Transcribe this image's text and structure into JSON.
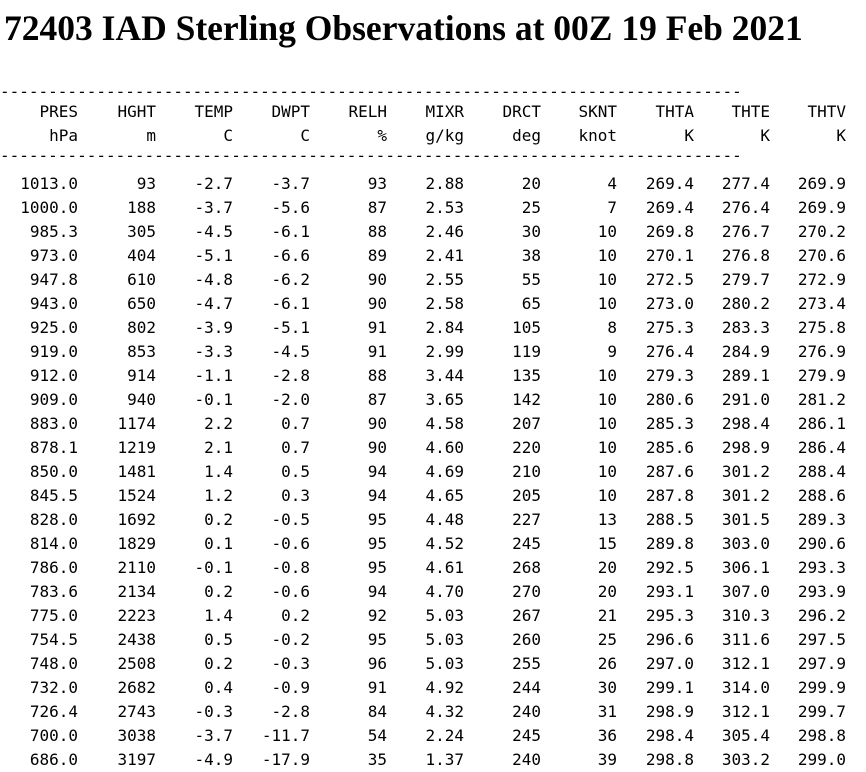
{
  "title": "72403 IAD Sterling Observations at 00Z 19 Feb 2021",
  "rule": "-----------------------------------------------------------------------------",
  "columns": [
    {
      "name": "PRES",
      "unit": "hPa"
    },
    {
      "name": "HGHT",
      "unit": "m"
    },
    {
      "name": "TEMP",
      "unit": "C"
    },
    {
      "name": "DWPT",
      "unit": "C"
    },
    {
      "name": "RELH",
      "unit": "%"
    },
    {
      "name": "MIXR",
      "unit": "g/kg"
    },
    {
      "name": "DRCT",
      "unit": "deg"
    },
    {
      "name": "SKNT",
      "unit": "knot"
    },
    {
      "name": "THTA",
      "unit": "K"
    },
    {
      "name": "THTE",
      "unit": "K"
    },
    {
      "name": "THTV",
      "unit": "K"
    }
  ],
  "rows": [
    [
      "1013.0",
      "93",
      "-2.7",
      "-3.7",
      "93",
      "2.88",
      "20",
      "4",
      "269.4",
      "277.4",
      "269.9"
    ],
    [
      "1000.0",
      "188",
      "-3.7",
      "-5.6",
      "87",
      "2.53",
      "25",
      "7",
      "269.4",
      "276.4",
      "269.9"
    ],
    [
      "985.3",
      "305",
      "-4.5",
      "-6.1",
      "88",
      "2.46",
      "30",
      "10",
      "269.8",
      "276.7",
      "270.2"
    ],
    [
      "973.0",
      "404",
      "-5.1",
      "-6.6",
      "89",
      "2.41",
      "38",
      "10",
      "270.1",
      "276.8",
      "270.6"
    ],
    [
      "947.8",
      "610",
      "-4.8",
      "-6.2",
      "90",
      "2.55",
      "55",
      "10",
      "272.5",
      "279.7",
      "272.9"
    ],
    [
      "943.0",
      "650",
      "-4.7",
      "-6.1",
      "90",
      "2.58",
      "65",
      "10",
      "273.0",
      "280.2",
      "273.4"
    ],
    [
      "925.0",
      "802",
      "-3.9",
      "-5.1",
      "91",
      "2.84",
      "105",
      "8",
      "275.3",
      "283.3",
      "275.8"
    ],
    [
      "919.0",
      "853",
      "-3.3",
      "-4.5",
      "91",
      "2.99",
      "119",
      "9",
      "276.4",
      "284.9",
      "276.9"
    ],
    [
      "912.0",
      "914",
      "-1.1",
      "-2.8",
      "88",
      "3.44",
      "135",
      "10",
      "279.3",
      "289.1",
      "279.9"
    ],
    [
      "909.0",
      "940",
      "-0.1",
      "-2.0",
      "87",
      "3.65",
      "142",
      "10",
      "280.6",
      "291.0",
      "281.2"
    ],
    [
      "883.0",
      "1174",
      "2.2",
      "0.7",
      "90",
      "4.58",
      "207",
      "10",
      "285.3",
      "298.4",
      "286.1"
    ],
    [
      "878.1",
      "1219",
      "2.1",
      "0.7",
      "90",
      "4.60",
      "220",
      "10",
      "285.6",
      "298.9",
      "286.4"
    ],
    [
      "850.0",
      "1481",
      "1.4",
      "0.5",
      "94",
      "4.69",
      "210",
      "10",
      "287.6",
      "301.2",
      "288.4"
    ],
    [
      "845.5",
      "1524",
      "1.2",
      "0.3",
      "94",
      "4.65",
      "205",
      "10",
      "287.8",
      "301.2",
      "288.6"
    ],
    [
      "828.0",
      "1692",
      "0.2",
      "-0.5",
      "95",
      "4.48",
      "227",
      "13",
      "288.5",
      "301.5",
      "289.3"
    ],
    [
      "814.0",
      "1829",
      "0.1",
      "-0.6",
      "95",
      "4.52",
      "245",
      "15",
      "289.8",
      "303.0",
      "290.6"
    ],
    [
      "786.0",
      "2110",
      "-0.1",
      "-0.8",
      "95",
      "4.61",
      "268",
      "20",
      "292.5",
      "306.1",
      "293.3"
    ],
    [
      "783.6",
      "2134",
      "0.2",
      "-0.6",
      "94",
      "4.70",
      "270",
      "20",
      "293.1",
      "307.0",
      "293.9"
    ],
    [
      "775.0",
      "2223",
      "1.4",
      "0.2",
      "92",
      "5.03",
      "267",
      "21",
      "295.3",
      "310.3",
      "296.2"
    ],
    [
      "754.5",
      "2438",
      "0.5",
      "-0.2",
      "95",
      "5.03",
      "260",
      "25",
      "296.6",
      "311.6",
      "297.5"
    ],
    [
      "748.0",
      "2508",
      "0.2",
      "-0.3",
      "96",
      "5.03",
      "255",
      "26",
      "297.0",
      "312.1",
      "297.9"
    ],
    [
      "732.0",
      "2682",
      "0.4",
      "-0.9",
      "91",
      "4.92",
      "244",
      "30",
      "299.1",
      "314.0",
      "299.9"
    ],
    [
      "726.4",
      "2743",
      "-0.3",
      "-2.8",
      "84",
      "4.32",
      "240",
      "31",
      "298.9",
      "312.1",
      "299.7"
    ],
    [
      "700.0",
      "3038",
      "-3.7",
      "-11.7",
      "54",
      "2.24",
      "245",
      "36",
      "298.4",
      "305.4",
      "298.8"
    ],
    [
      "686.0",
      "3197",
      "-4.9",
      "-17.9",
      "35",
      "1.37",
      "240",
      "39",
      "298.8",
      "303.2",
      "299.0"
    ]
  ]
}
